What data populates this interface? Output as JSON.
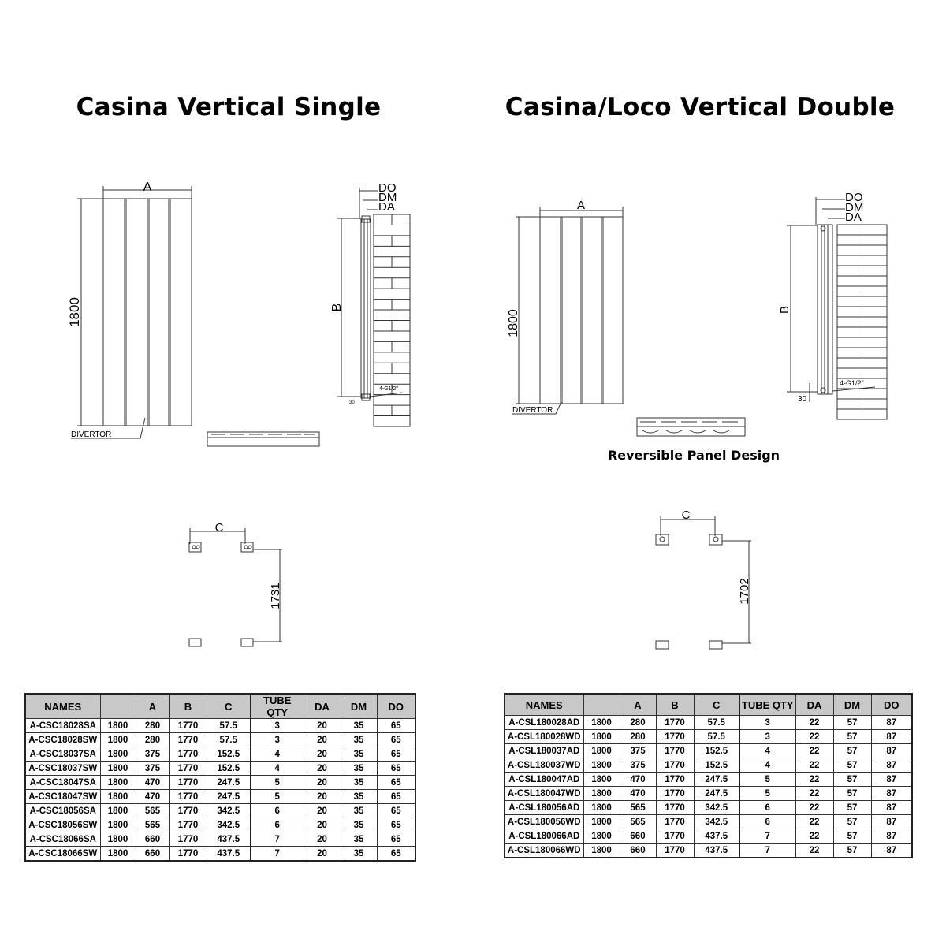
{
  "single": {
    "title": "Casina Vertical Single",
    "front_view": {
      "width_label": "A",
      "height_label": "1800",
      "divertor_label": "DIVERTOR"
    },
    "side_view": {
      "do_label": "DO",
      "dm_label": "DM",
      "da_label": "DA",
      "height_label": "B",
      "connection_label": "4-G1/2\"",
      "offset_label": "30"
    },
    "pipe_centres": {
      "c_label": "C",
      "height_label": "1731"
    },
    "table": {
      "headers": [
        "NAMES",
        "",
        "A",
        "B",
        "C",
        "TUBE QTY",
        "DA",
        "DM",
        "DO"
      ],
      "rows": [
        [
          "A-CSC18028SA",
          "1800",
          "280",
          "1770",
          "57.5",
          "3",
          "20",
          "35",
          "65"
        ],
        [
          "A-CSC18028SW",
          "1800",
          "280",
          "1770",
          "57.5",
          "3",
          "20",
          "35",
          "65"
        ],
        [
          "A-CSC18037SA",
          "1800",
          "375",
          "1770",
          "152.5",
          "4",
          "20",
          "35",
          "65"
        ],
        [
          "A-CSC18037SW",
          "1800",
          "375",
          "1770",
          "152.5",
          "4",
          "20",
          "35",
          "65"
        ],
        [
          "A-CSC18047SA",
          "1800",
          "470",
          "1770",
          "247.5",
          "5",
          "20",
          "35",
          "65"
        ],
        [
          "A-CSC18047SW",
          "1800",
          "470",
          "1770",
          "247.5",
          "5",
          "20",
          "35",
          "65"
        ],
        [
          "A-CSC18056SA",
          "1800",
          "565",
          "1770",
          "342.5",
          "6",
          "20",
          "35",
          "65"
        ],
        [
          "A-CSC18056SW",
          "1800",
          "565",
          "1770",
          "342.5",
          "6",
          "20",
          "35",
          "65"
        ],
        [
          "A-CSC18066SA",
          "1800",
          "660",
          "1770",
          "437.5",
          "7",
          "20",
          "35",
          "65"
        ],
        [
          "A-CSC18066SW",
          "1800",
          "660",
          "1770",
          "437.5",
          "7",
          "20",
          "35",
          "65"
        ]
      ]
    }
  },
  "double": {
    "title": "Casina/Loco Vertical Double",
    "front_view": {
      "width_label": "A",
      "height_label": "1800",
      "divertor_label": "DIVERTOR"
    },
    "reversible_label": "Reversible Panel Design",
    "side_view": {
      "do_label": "DO",
      "dm_label": "DM",
      "da_label": "DA",
      "height_label": "B",
      "connection_label": "4-G1/2\"",
      "offset_label": "30"
    },
    "pipe_centres": {
      "c_label": "C",
      "height_label": "1702"
    },
    "table": {
      "headers": [
        "NAMES",
        "",
        "A",
        "B",
        "C",
        "TUBE QTY",
        "DA",
        "DM",
        "DO"
      ],
      "rows": [
        [
          "A-CSL180028AD",
          "1800",
          "280",
          "1770",
          "57.5",
          "3",
          "22",
          "57",
          "87"
        ],
        [
          "A-CSL180028WD",
          "1800",
          "280",
          "1770",
          "57.5",
          "3",
          "22",
          "57",
          "87"
        ],
        [
          "A-CSL180037AD",
          "1800",
          "375",
          "1770",
          "152.5",
          "4",
          "22",
          "57",
          "87"
        ],
        [
          "A-CSL180037WD",
          "1800",
          "375",
          "1770",
          "152.5",
          "4",
          "22",
          "57",
          "87"
        ],
        [
          "A-CSL180047AD",
          "1800",
          "470",
          "1770",
          "247.5",
          "5",
          "22",
          "57",
          "87"
        ],
        [
          "A-CSL180047WD",
          "1800",
          "470",
          "1770",
          "247.5",
          "5",
          "22",
          "57",
          "87"
        ],
        [
          "A-CSL180056AD",
          "1800",
          "565",
          "1770",
          "342.5",
          "6",
          "22",
          "57",
          "87"
        ],
        [
          "A-CSL180056WD",
          "1800",
          "565",
          "1770",
          "342.5",
          "6",
          "22",
          "57",
          "87"
        ],
        [
          "A-CSL180066AD",
          "1800",
          "660",
          "1770",
          "437.5",
          "7",
          "22",
          "57",
          "87"
        ],
        [
          "A-CSL180066WD",
          "1800",
          "660",
          "1770",
          "437.5",
          "7",
          "22",
          "57",
          "87"
        ]
      ]
    }
  },
  "colors": {
    "header_fill": "#c8c8c8",
    "line": "#333333"
  }
}
